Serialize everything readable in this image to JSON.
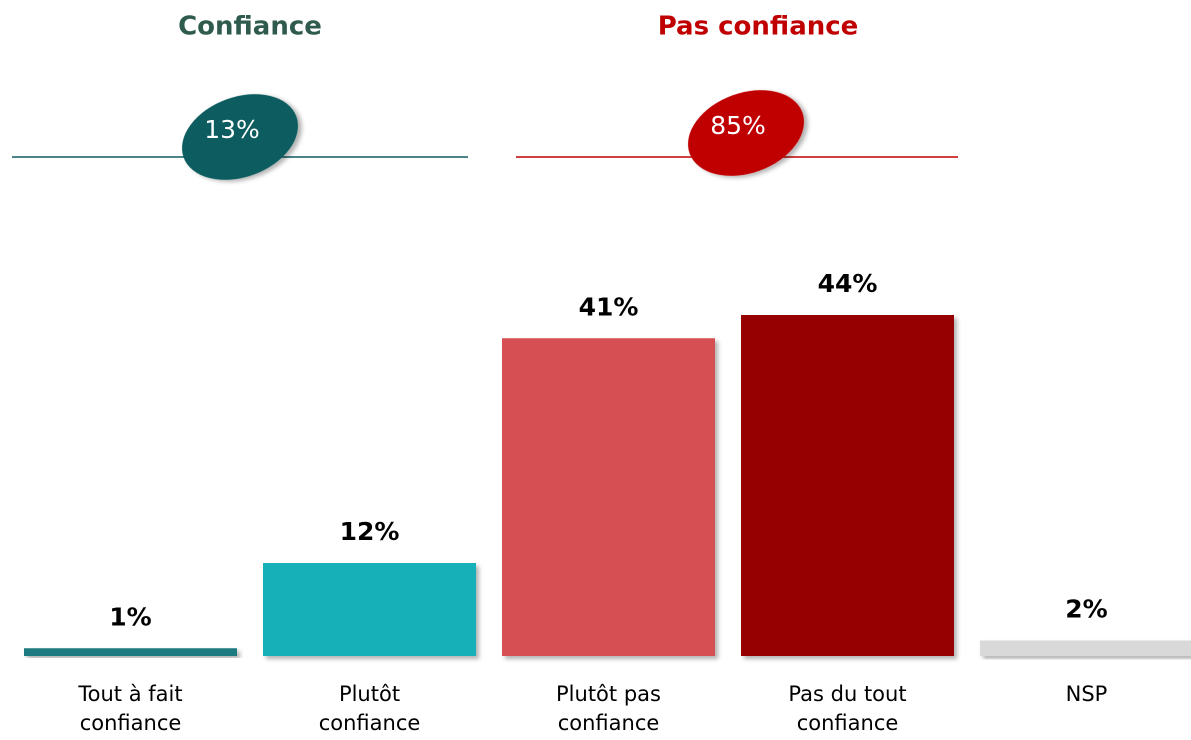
{
  "chart_data": {
    "type": "bar",
    "groups": [
      {
        "name": "Confiance",
        "value": 13,
        "value_label": "13%",
        "color": "#0f5c5e"
      },
      {
        "name": "Pas confiance",
        "value": 85,
        "value_label": "85%",
        "color": "#c00000"
      }
    ],
    "categories": [
      "Tout à fait confiance",
      "Plutôt confiance",
      "Plutôt pas confiance",
      "Pas du tout confiance",
      "NSP"
    ],
    "values": [
      1,
      12,
      41,
      44,
      2
    ],
    "value_labels": [
      "1%",
      "12%",
      "41%",
      "44%",
      "2%"
    ],
    "colors": [
      "#1a7a80",
      "#14b0b8",
      "#d65053",
      "#960000",
      "#d9d9d9"
    ],
    "ylim": [
      0,
      50
    ]
  }
}
